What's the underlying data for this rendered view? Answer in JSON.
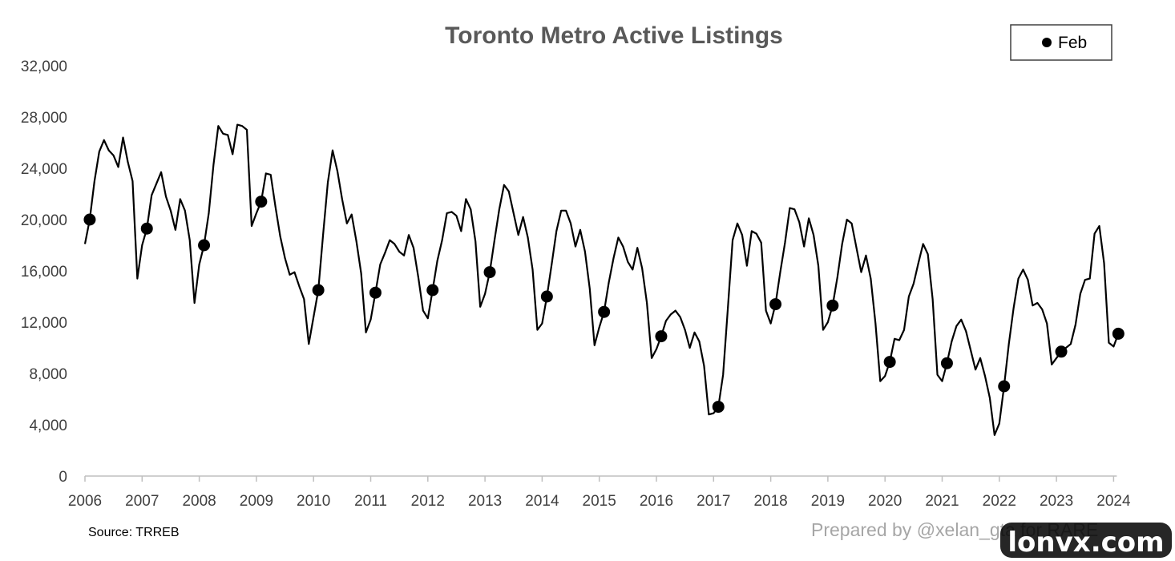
{
  "chart_data": {
    "type": "line",
    "title": "Toronto Metro Active Listings",
    "x_start": "2006-01",
    "x_end": "2024-02",
    "x_ticks": [
      "2006",
      "2007",
      "2008",
      "2009",
      "2010",
      "2011",
      "2012",
      "2013",
      "2014",
      "2015",
      "2016",
      "2017",
      "2018",
      "2019",
      "2020",
      "2021",
      "2022",
      "2023",
      "2024"
    ],
    "y_ticks": [
      "0",
      "4,000",
      "8,000",
      "12,000",
      "16,000",
      "20,000",
      "24,000",
      "28,000",
      "32,000"
    ],
    "ylim": [
      0,
      32000
    ],
    "grid": false,
    "legend_position": "top-right",
    "series": [
      {
        "values": [
          18100,
          20000,
          23000,
          25300,
          26200,
          25400,
          25000,
          24100,
          26400,
          24500,
          23000,
          15400,
          18000,
          19300,
          21900,
          22800,
          23700,
          21800,
          20700,
          19200,
          21600,
          20700,
          18400,
          13500,
          16500,
          18000,
          20500,
          24300,
          27300,
          26700,
          26600,
          25100,
          27400,
          27300,
          27000,
          19500,
          20500,
          21400,
          23600,
          23500,
          21000,
          18700,
          17000,
          15700,
          15900,
          14800,
          13800,
          10300,
          12400,
          14500,
          18800,
          22900,
          25400,
          23800,
          21600,
          19700,
          20400,
          18300,
          15800,
          11200,
          12200,
          14300,
          16500,
          17400,
          18400,
          18100,
          17500,
          17200,
          18800,
          17800,
          15500,
          12900,
          12300,
          14500,
          16800,
          18400,
          20500,
          20600,
          20300,
          19100,
          21600,
          20800,
          18300,
          13200,
          14200,
          15900,
          18400,
          20800,
          22700,
          22200,
          20500,
          18800,
          20200,
          18600,
          16100,
          11400,
          11900,
          14000,
          16500,
          19100,
          20700,
          20700,
          19700,
          17900,
          19200,
          17500,
          14600,
          10200,
          11600,
          12800,
          15100,
          17000,
          18600,
          17900,
          16700,
          16100,
          17800,
          16200,
          13500,
          9200,
          9900,
          10900,
          12100,
          12600,
          12900,
          12400,
          11400,
          10000,
          11200,
          10500,
          8600,
          4800,
          4900,
          5400,
          7900,
          13100,
          18400,
          19700,
          18800,
          16400,
          19100,
          18900,
          18200,
          12900,
          11900,
          13400,
          15900,
          18200,
          20900,
          20800,
          19800,
          17900,
          20100,
          18800,
          16400,
          11400,
          12000,
          13300,
          15500,
          18100,
          20000,
          19700,
          17800,
          15900,
          17200,
          15400,
          11900,
          7400,
          7800,
          8900,
          10700,
          10600,
          11400,
          14000,
          15000,
          16600,
          18100,
          17300,
          13800,
          7900,
          7400,
          8800,
          10500,
          11700,
          12200,
          11300,
          9800,
          8300,
          9200,
          7800,
          6100,
          3200,
          4100,
          7000,
          10300,
          13100,
          15400,
          16100,
          15300,
          13300,
          13500,
          13000,
          11900,
          8700,
          9200,
          9700,
          10000,
          10300,
          11800,
          14200,
          15300,
          15400,
          18900,
          19500,
          16600,
          10400,
          10100,
          11100
        ]
      }
    ],
    "feb_markers": {
      "legend": "Feb",
      "values": [
        20000,
        19300,
        18000,
        21400,
        14500,
        14300,
        14500,
        15900,
        14000,
        12800,
        10900,
        5400,
        13400,
        13300,
        8900,
        8800,
        7000,
        9700,
        11100
      ]
    },
    "source": "Source: TRREB",
    "credit": "Prepared by @xelan_gta for RARE",
    "watermark": "lonvx.com"
  }
}
